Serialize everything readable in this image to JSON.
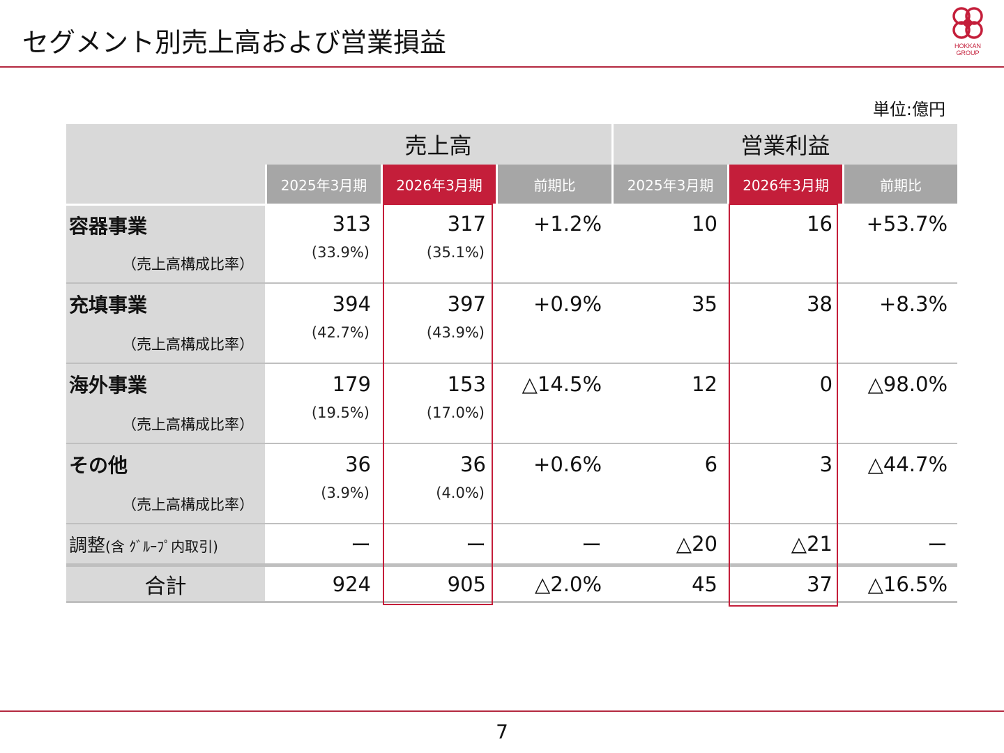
{
  "title": "セグメント別売上高および営業損益",
  "logo": {
    "line1": "HOKKAN",
    "line2": "GROUP"
  },
  "unit": "単位:億円",
  "headers": {
    "sales": "売上高",
    "op_profit": "営業利益",
    "fy2025": "2025年3月期",
    "fy2026": "2026年3月期",
    "yoy": "前期比"
  },
  "segments": [
    {
      "name": "容器事業",
      "sub_label": "（売上高構成比率）",
      "s25": "313",
      "s26": "317",
      "s_yoy": "+1.2%",
      "share25": "(33.9%)",
      "share26": "(35.1%)",
      "p25": "10",
      "p26": "16",
      "p_yoy": "+53.7%"
    },
    {
      "name": "充填事業",
      "sub_label": "（売上高構成比率）",
      "s25": "394",
      "s26": "397",
      "s_yoy": "+0.9%",
      "share25": "(42.7%)",
      "share26": "(43.9%)",
      "p25": "35",
      "p26": "38",
      "p_yoy": "+8.3%"
    },
    {
      "name": "海外事業",
      "sub_label": "（売上高構成比率）",
      "s25": "179",
      "s26": "153",
      "s_yoy": "△14.5%",
      "share25": "(19.5%)",
      "share26": "(17.0%)",
      "p25": "12",
      "p26": "0",
      "p_yoy": "△98.0%"
    },
    {
      "name": "その他",
      "sub_label": "（売上高構成比率）",
      "s25": "36",
      "s26": "36",
      "s_yoy": "+0.6%",
      "share25": "(3.9%)",
      "share26": "(4.0%)",
      "p25": "6",
      "p26": "3",
      "p_yoy": "△44.7%"
    }
  ],
  "adjustment": {
    "label": "調整",
    "label_note": "(含 ｸﾞﾙｰﾌﾟ内取引)",
    "s25": "ー",
    "s26": "ー",
    "s_yoy": "ー",
    "p25": "△20",
    "p26": "△21",
    "p_yoy": "ー"
  },
  "total": {
    "label": "合計",
    "s25": "924",
    "s26": "905",
    "s_yoy": "△2.0%",
    "p25": "45",
    "p26": "37",
    "p_yoy": "△16.5%"
  },
  "page_number": "7",
  "colors": {
    "accent": "#c41e3a",
    "header_gray": "#a6a6a6",
    "label_gray": "#d9d9d9"
  }
}
